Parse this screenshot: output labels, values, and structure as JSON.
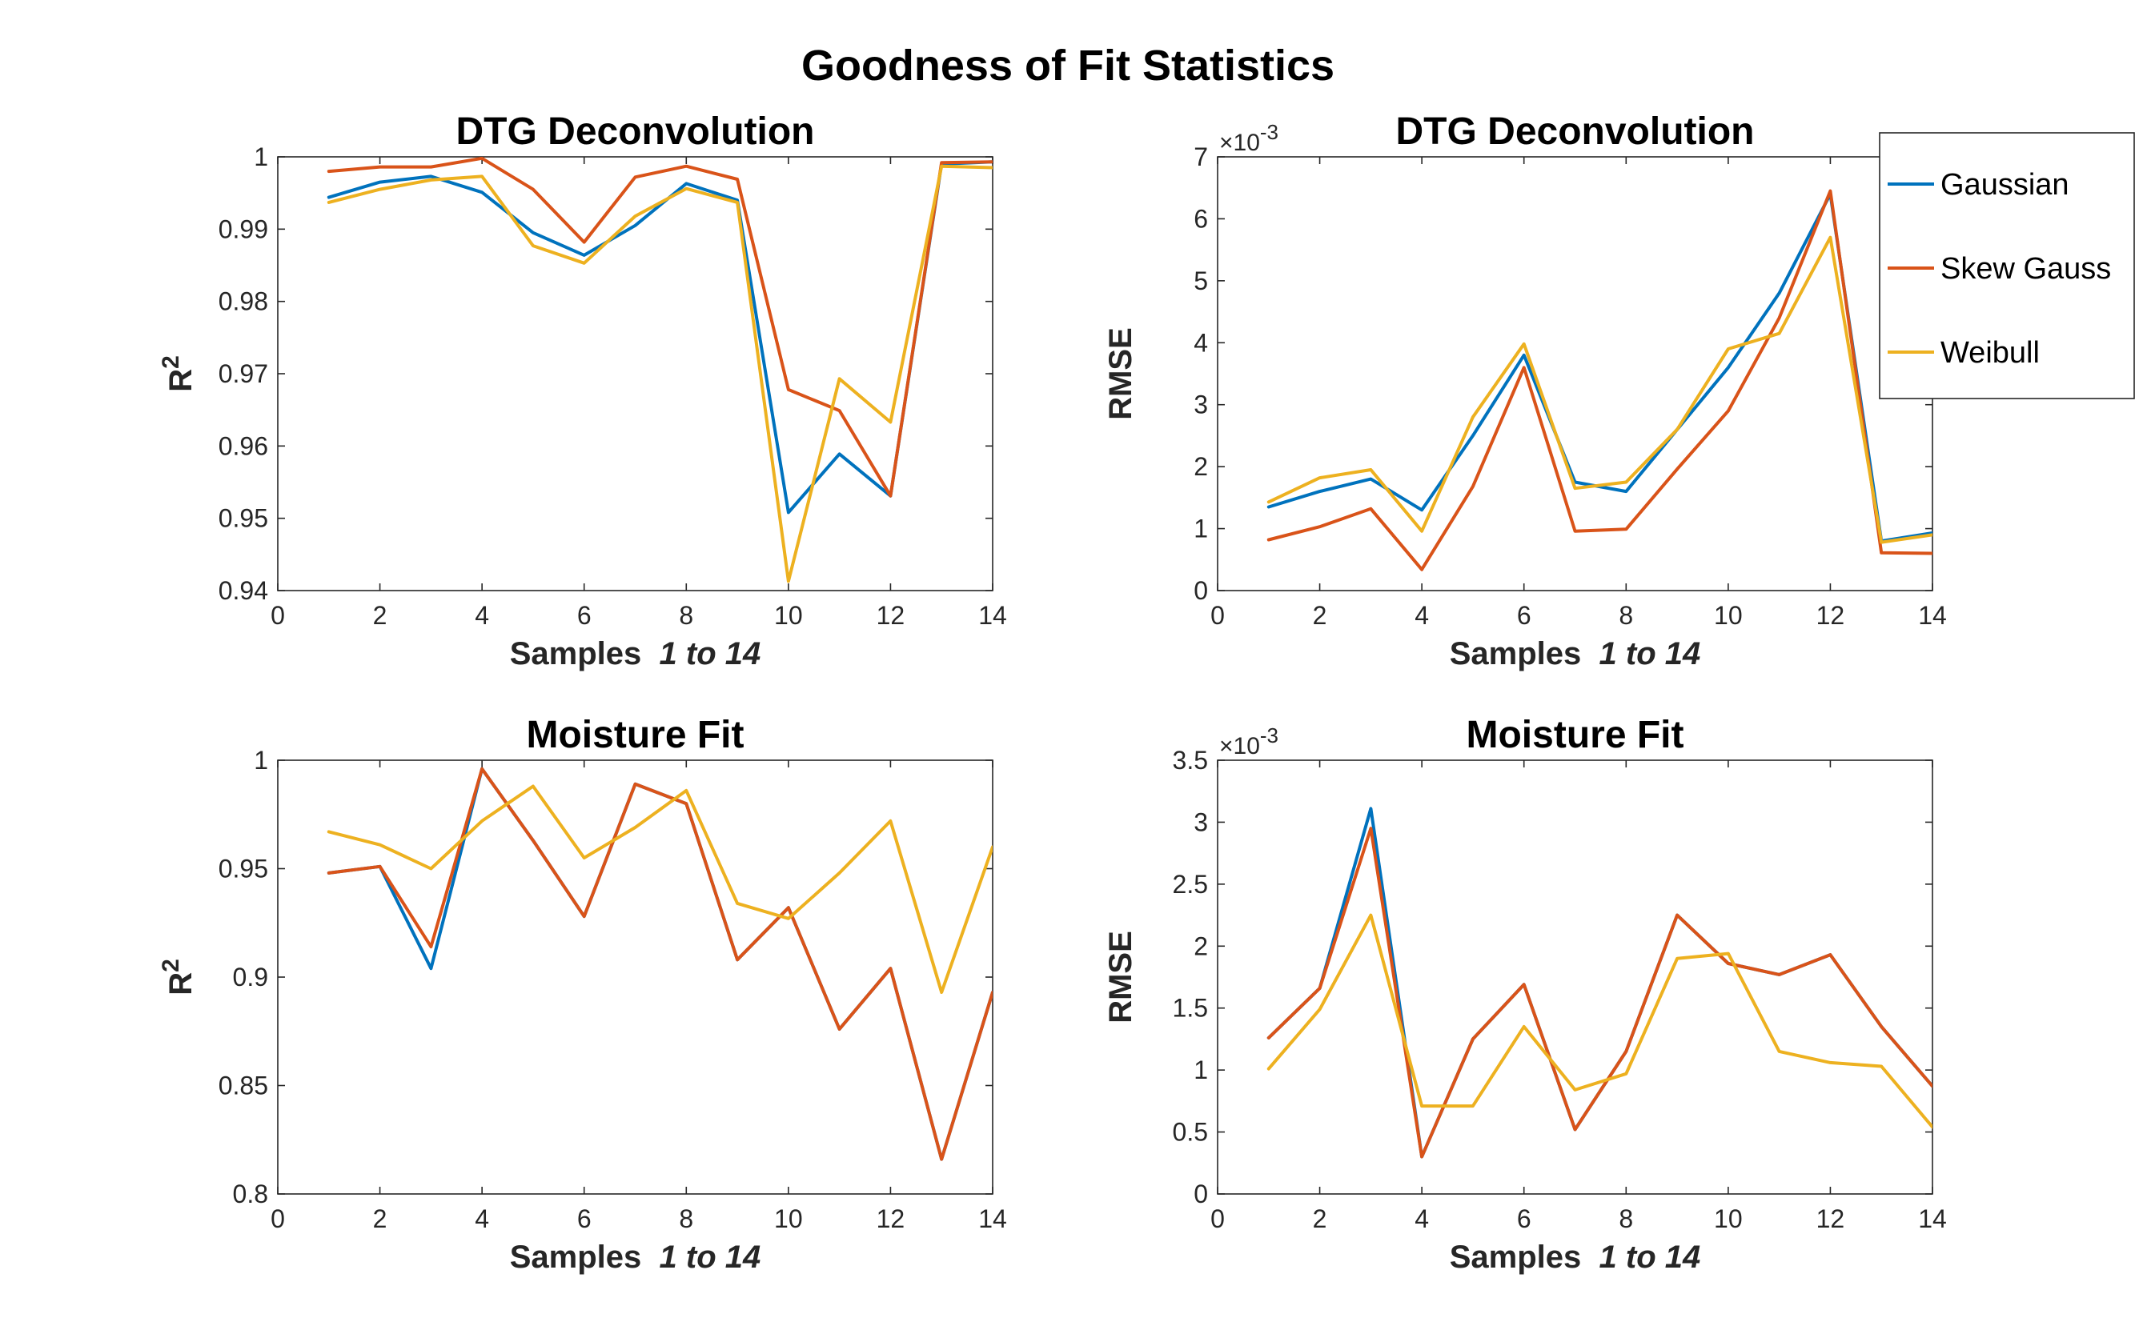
{
  "figure": {
    "title": "Goodness of Fit Statistics"
  },
  "legend": {
    "placement": "top-right",
    "entries": [
      {
        "name": "Gaussian",
        "color": "#0072BD"
      },
      {
        "name": "Skew Gauss",
        "color": "#D95319"
      },
      {
        "name": "Weibull",
        "color": "#EDB120"
      }
    ]
  },
  "chart_data": [
    {
      "type": "line",
      "title": "DTG Deconvolution",
      "xlabel": "Samples",
      "xlabel_italic": "1 to 14",
      "ylabel": "R",
      "ylabel_sup": "2",
      "xlim": [
        0,
        14
      ],
      "ylim": [
        0.94,
        1
      ],
      "xticks": [
        0,
        2,
        4,
        6,
        8,
        10,
        12,
        14
      ],
      "yticks": [
        0.94,
        0.95,
        0.96,
        0.97,
        0.98,
        0.99,
        1
      ],
      "ytick_labels": [
        "0.94",
        "0.95",
        "0.96",
        "0.97",
        "0.98",
        "0.99",
        "1"
      ],
      "grid": false,
      "x": [
        1,
        2,
        3,
        4,
        5,
        6,
        7,
        8,
        9,
        10,
        11,
        12,
        13,
        14
      ],
      "series": [
        {
          "name": "Gaussian",
          "color": "#0072BD",
          "values": [
            0.9944,
            0.9965,
            0.9973,
            0.9951,
            0.9895,
            0.9864,
            0.9905,
            0.9963,
            0.994,
            0.9508,
            0.9589,
            0.9531,
            0.999,
            0.9993
          ]
        },
        {
          "name": "Skew Gauss",
          "color": "#D95319",
          "values": [
            0.998,
            0.9986,
            0.9986,
            0.9998,
            0.9955,
            0.9882,
            0.9972,
            0.9987,
            0.9969,
            0.9678,
            0.9649,
            0.9531,
            0.9992,
            0.9993
          ]
        },
        {
          "name": "Weibull",
          "color": "#EDB120",
          "values": [
            0.9937,
            0.9955,
            0.9968,
            0.9973,
            0.9877,
            0.9853,
            0.9918,
            0.9956,
            0.9937,
            0.9413,
            0.9693,
            0.9633,
            0.9987,
            0.9985
          ]
        }
      ]
    },
    {
      "type": "line",
      "title": "DTG Deconvolution",
      "xlabel": "Samples",
      "xlabel_italic": "1 to 14",
      "ylabel": "RMSE",
      "exponent": "×10",
      "exponent_power": "-3",
      "xlim": [
        0,
        14
      ],
      "ylim": [
        0,
        0.007
      ],
      "xticks": [
        0,
        2,
        4,
        6,
        8,
        10,
        12,
        14
      ],
      "yticks": [
        0,
        0.001,
        0.002,
        0.003,
        0.004,
        0.005,
        0.006,
        0.007
      ],
      "ytick_labels": [
        "0",
        "1",
        "2",
        "3",
        "4",
        "5",
        "6",
        "7"
      ],
      "grid": false,
      "x": [
        1,
        2,
        3,
        4,
        5,
        6,
        7,
        8,
        9,
        10,
        11,
        12,
        13,
        14
      ],
      "series": [
        {
          "name": "Gaussian",
          "color": "#0072BD",
          "values": [
            0.00135,
            0.0016,
            0.0018,
            0.0013,
            0.0025,
            0.0038,
            0.00175,
            0.0016,
            0.0026,
            0.0036,
            0.0048,
            0.0064,
            0.0008,
            0.00093
          ]
        },
        {
          "name": "Skew Gauss",
          "color": "#D95319",
          "values": [
            0.00082,
            0.00103,
            0.00132,
            0.00034,
            0.00168,
            0.0036,
            0.00096,
            0.00099,
            0.00196,
            0.0029,
            0.0044,
            0.00645,
            0.00061,
            0.0006
          ]
        },
        {
          "name": "Weibull",
          "color": "#EDB120",
          "values": [
            0.00143,
            0.00182,
            0.00195,
            0.00096,
            0.0028,
            0.00398,
            0.00165,
            0.00175,
            0.0026,
            0.0039,
            0.00415,
            0.0057,
            0.00078,
            0.0009
          ]
        }
      ]
    },
    {
      "type": "line",
      "title": "Moisture Fit",
      "xlabel": "Samples",
      "xlabel_italic": "1 to 14",
      "ylabel": "R",
      "ylabel_sup": "2",
      "xlim": [
        0,
        14
      ],
      "ylim": [
        0.8,
        1
      ],
      "xticks": [
        0,
        2,
        4,
        6,
        8,
        10,
        12,
        14
      ],
      "yticks": [
        0.8,
        0.85,
        0.9,
        0.95,
        1
      ],
      "ytick_labels": [
        "0.8",
        "0.85",
        "0.9",
        "0.95",
        "1"
      ],
      "grid": false,
      "x": [
        1,
        2,
        3,
        4,
        5,
        6,
        7,
        8,
        9,
        10,
        11,
        12,
        13,
        14
      ],
      "series": [
        {
          "name": "Gaussian",
          "color": "#0072BD",
          "values": [
            0.948,
            0.951,
            0.904,
            0.996,
            0.963,
            0.928,
            0.989,
            0.98,
            0.908,
            0.932,
            0.876,
            0.904,
            0.816,
            0.893
          ]
        },
        {
          "name": "Skew Gauss",
          "color": "#D95319",
          "values": [
            0.948,
            0.951,
            0.914,
            0.996,
            0.963,
            0.928,
            0.989,
            0.98,
            0.908,
            0.932,
            0.876,
            0.904,
            0.816,
            0.893
          ]
        },
        {
          "name": "Weibull",
          "color": "#EDB120",
          "values": [
            0.967,
            0.961,
            0.95,
            0.972,
            0.988,
            0.955,
            0.969,
            0.986,
            0.934,
            0.927,
            0.948,
            0.972,
            0.893,
            0.96
          ]
        }
      ]
    },
    {
      "type": "line",
      "title": "Moisture Fit",
      "xlabel": "Samples",
      "xlabel_italic": "1 to 14",
      "ylabel": "RMSE",
      "exponent": "×10",
      "exponent_power": "-3",
      "xlim": [
        0,
        14
      ],
      "ylim": [
        0,
        0.0035
      ],
      "xticks": [
        0,
        2,
        4,
        6,
        8,
        10,
        12,
        14
      ],
      "yticks": [
        0,
        0.0005,
        0.001,
        0.0015,
        0.002,
        0.0025,
        0.003,
        0.0035
      ],
      "ytick_labels": [
        "0",
        "0.5",
        "1",
        "1.5",
        "2",
        "2.5",
        "3",
        "3.5"
      ],
      "grid": false,
      "x": [
        1,
        2,
        3,
        4,
        5,
        6,
        7,
        8,
        9,
        10,
        11,
        12,
        13,
        14
      ],
      "series": [
        {
          "name": "Gaussian",
          "color": "#0072BD",
          "values": [
            0.00126,
            0.00166,
            0.00311,
            0.0003,
            0.00125,
            0.00169,
            0.00052,
            0.00115,
            0.00225,
            0.00186,
            0.00177,
            0.00193,
            0.00135,
            0.00087
          ]
        },
        {
          "name": "Skew Gauss",
          "color": "#D95319",
          "values": [
            0.00126,
            0.00166,
            0.00295,
            0.0003,
            0.00125,
            0.00169,
            0.00052,
            0.00115,
            0.00225,
            0.00186,
            0.00177,
            0.00193,
            0.00135,
            0.00087
          ]
        },
        {
          "name": "Weibull",
          "color": "#EDB120",
          "values": [
            0.00101,
            0.00149,
            0.00225,
            0.00071,
            0.00071,
            0.00135,
            0.00084,
            0.00097,
            0.0019,
            0.00194,
            0.00115,
            0.00106,
            0.00103,
            0.00054
          ]
        }
      ]
    }
  ]
}
